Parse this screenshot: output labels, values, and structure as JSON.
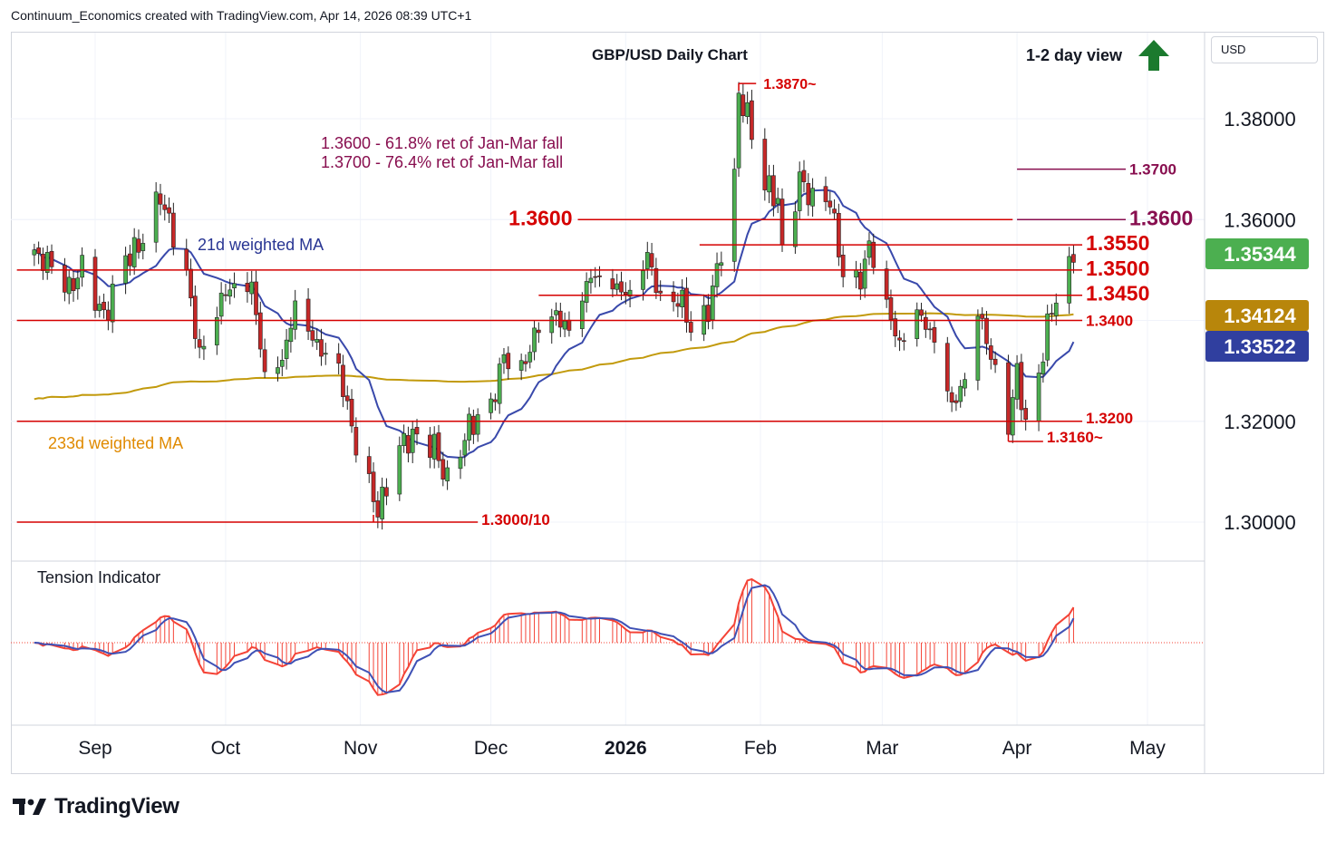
{
  "header": {
    "text": "Continuum_Economics created with TradingView.com, Apr 14, 2026 08:39 UTC+1"
  },
  "brand": {
    "name": "TradingView",
    "logo_icon": "tradingview-logo-icon"
  },
  "currency_button": {
    "label": "USD"
  },
  "chart_data": {
    "type": "candlestick",
    "title": "GBP/USD Daily Chart",
    "view_label": "1-2 day view",
    "view_icon": "arrow-up-icon",
    "view_direction": "up",
    "y_axis": {
      "range": [
        1.292,
        1.393
      ],
      "ticks": [
        {
          "value": 1.38,
          "label": "1.38000"
        },
        {
          "value": 1.36,
          "label": "1.36000"
        },
        {
          "value": 1.32,
          "label": "1.32000"
        },
        {
          "value": 1.3,
          "label": "1.30000"
        }
      ],
      "price_tags": [
        {
          "value": 1.35344,
          "label": "1.35344",
          "color": "#4caf50"
        },
        {
          "value": 1.34124,
          "label": "1.34124",
          "color": "#b8860b"
        },
        {
          "value": 1.33522,
          "label": "1.33522",
          "color": "#303f9f"
        }
      ]
    },
    "x_axis": {
      "labels": [
        {
          "date": "2025-09-01",
          "label": "Sep",
          "bold": false
        },
        {
          "date": "2025-10-01",
          "label": "Oct",
          "bold": false
        },
        {
          "date": "2025-11-01",
          "label": "Nov",
          "bold": false
        },
        {
          "date": "2025-12-01",
          "label": "Dec",
          "bold": false
        },
        {
          "date": "2026-01-01",
          "label": "2026",
          "bold": true
        },
        {
          "date": "2026-02-01",
          "label": "Feb",
          "bold": false
        },
        {
          "date": "2026-03-01",
          "label": "Mar",
          "bold": false
        },
        {
          "date": "2026-04-01",
          "label": "Apr",
          "bold": false
        },
        {
          "date": "2026-05-01",
          "label": "May",
          "bold": false
        }
      ]
    },
    "close_path": [
      [
        "2025-08-18",
        1.353
      ],
      [
        "2025-08-22",
        1.351
      ],
      [
        "2025-08-26",
        1.346
      ],
      [
        "2025-08-29",
        1.3505
      ],
      [
        "2025-09-03",
        1.3405
      ],
      [
        "2025-09-08",
        1.3525
      ],
      [
        "2025-09-11",
        1.3545
      ],
      [
        "2025-09-16",
        1.365
      ],
      [
        "2025-09-17",
        1.362
      ],
      [
        "2025-09-22",
        1.349
      ],
      [
        "2025-09-25",
        1.333
      ],
      [
        "2025-10-01",
        1.346
      ],
      [
        "2025-10-07",
        1.347
      ],
      [
        "2025-10-10",
        1.329
      ],
      [
        "2025-10-14",
        1.332
      ],
      [
        "2025-10-17",
        1.343
      ],
      [
        "2025-10-22",
        1.335
      ],
      [
        "2025-10-27",
        1.3305
      ],
      [
        "2025-10-31",
        1.315
      ],
      [
        "2025-11-04",
        1.305
      ],
      [
        "2025-11-05",
        1.302
      ],
      [
        "2025-11-10",
        1.315
      ],
      [
        "2025-11-13",
        1.317
      ],
      [
        "2025-11-18",
        1.315
      ],
      [
        "2025-11-21",
        1.308
      ],
      [
        "2025-11-26",
        1.319
      ],
      [
        "2025-12-01",
        1.323
      ],
      [
        "2025-12-04",
        1.333
      ],
      [
        "2025-12-08",
        1.33
      ],
      [
        "2025-12-12",
        1.339
      ],
      [
        "2025-12-16",
        1.341
      ],
      [
        "2025-12-19",
        1.338
      ],
      [
        "2025-12-24",
        1.349
      ],
      [
        "2025-12-29",
        1.347
      ],
      [
        "2026-01-02",
        1.345
      ],
      [
        "2026-01-06",
        1.353
      ],
      [
        "2026-01-09",
        1.344
      ],
      [
        "2026-01-14",
        1.344
      ],
      [
        "2026-01-16",
        1.338
      ],
      [
        "2026-01-20",
        1.342
      ],
      [
        "2026-01-23",
        1.354
      ],
      [
        "2026-01-26",
        1.368
      ],
      [
        "2026-01-27",
        1.385
      ],
      [
        "2026-01-29",
        1.3805
      ],
      [
        "2026-02-02",
        1.367
      ],
      [
        "2026-02-05",
        1.364
      ],
      [
        "2026-02-06",
        1.353
      ],
      [
        "2026-02-10",
        1.368
      ],
      [
        "2026-02-13",
        1.364
      ],
      [
        "2026-02-17",
        1.364
      ],
      [
        "2026-02-20",
        1.349
      ],
      [
        "2026-02-24",
        1.348
      ],
      [
        "2026-02-26",
        1.355
      ],
      [
        "2026-03-02",
        1.343
      ],
      [
        "2026-03-05",
        1.335
      ],
      [
        "2026-03-09",
        1.342
      ],
      [
        "2026-03-13",
        1.336
      ],
      [
        "2026-03-17",
        1.323
      ],
      [
        "2026-03-20",
        1.328
      ],
      [
        "2026-03-23",
        1.342
      ],
      [
        "2026-03-26",
        1.333
      ],
      [
        "2026-03-30",
        1.319
      ],
      [
        "2026-04-01",
        1.33
      ],
      [
        "2026-04-03",
        1.319
      ],
      [
        "2026-04-06",
        1.329
      ],
      [
        "2026-04-08",
        1.339
      ],
      [
        "2026-04-10",
        1.345
      ],
      [
        "2026-04-13",
        1.35
      ],
      [
        "2026-04-14",
        1.3534
      ]
    ],
    "horizontal_levels": [
      {
        "value": 1.387,
        "label": "1.3870~",
        "start": "2026-01-27",
        "end": "2026-01-31",
        "style": "red-small"
      },
      {
        "value": 1.37,
        "label": "1.3700",
        "start": "2026-04-01",
        "end": "2026-04-26",
        "style": "maroon"
      },
      {
        "value": 1.36,
        "label": "1.3600",
        "start": "2026-04-01",
        "end": "2026-04-26",
        "style": "maroon-large"
      },
      {
        "value": 1.36,
        "label": "1.3600",
        "start": "2025-12-21",
        "end": "2026-03-31",
        "style": "red-large-left"
      },
      {
        "value": 1.355,
        "label": "1.3550",
        "start": "2026-01-18",
        "end": "2026-04-16",
        "style": "red-large"
      },
      {
        "value": 1.35,
        "label": "1.3500",
        "start": "2025-08-14",
        "end": "2026-04-16",
        "style": "red-large"
      },
      {
        "value": 1.345,
        "label": "1.3450",
        "start": "2025-12-12",
        "end": "2026-04-16",
        "style": "red-large"
      },
      {
        "value": 1.34,
        "label": "1.3400",
        "start": "2025-08-14",
        "end": "2026-04-16",
        "style": "red-medium"
      },
      {
        "value": 1.32,
        "label": "1.3200",
        "start": "2025-08-14",
        "end": "2026-04-16",
        "style": "red-medium"
      },
      {
        "value": 1.316,
        "label": "1.3160~",
        "start": "2026-03-30",
        "end": "2026-04-07",
        "style": "red-medium"
      },
      {
        "value": 1.3,
        "label": "1.3000/10",
        "start": "2025-08-14",
        "end": "2025-11-28",
        "style": "red-medium"
      }
    ],
    "annotations": [
      {
        "text": "1.3600 - 61.8% ret of Jan-Mar fall"
      },
      {
        "text": "1.3700 - 76.4% ret of Jan-Mar fall"
      }
    ],
    "series": [
      {
        "name": "21d weighted MA",
        "color": "#3949ab"
      },
      {
        "name": "233d weighted MA",
        "color": "#c29a0c"
      }
    ],
    "indicator": {
      "name": "Tension Indicator",
      "fill_color": "#f44336",
      "line_colors": [
        "#f44336",
        "#3f51b5"
      ]
    },
    "colors": {
      "up": "#4caf50",
      "down": "#c62828",
      "level": "#d50000",
      "maroon": "#880e4f",
      "grid": "#f0f3fa"
    }
  }
}
